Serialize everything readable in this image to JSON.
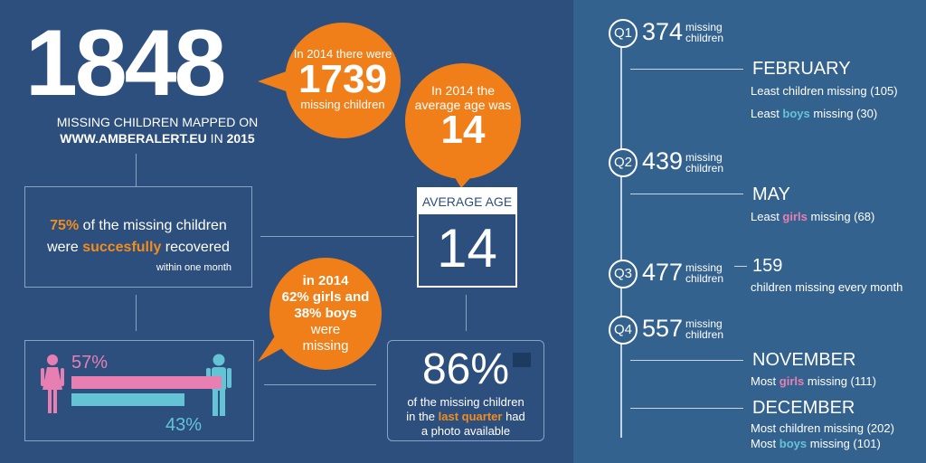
{
  "headline": {
    "number": "1848",
    "line1": "MISSING CHILDREN MAPPED ON",
    "line2_site": "WWW.AMBERALERT.EU",
    "line2_in": " IN ",
    "line2_year": "2015"
  },
  "bubble_2014_count": {
    "prefix": "In 2014 there were",
    "value": "1739",
    "suffix": "missing children"
  },
  "bubble_2014_age": {
    "line1": "In 2014 the",
    "line2": "average age was",
    "value": "14"
  },
  "recovered": {
    "pct": "75%",
    "text1": " of the missing children",
    "text2a": "were ",
    "text2b": "succesfully",
    "text2c": " recovered",
    "text3": "within one month"
  },
  "average_age_card": {
    "title": "AVERAGE AGE",
    "value": "14"
  },
  "bubble_gender_2014": {
    "l1": "in 2014",
    "l2": "62% girls and",
    "l3": "38% boys",
    "l4": "were",
    "l5": "missing"
  },
  "gender_split": {
    "girls_label": "57%",
    "boys_label": "43%",
    "girls_value": 57,
    "boys_value": 43,
    "girls_color": "#e87fb3",
    "boys_color": "#64c4d6"
  },
  "photo_stat": {
    "pct": "86%",
    "l1": "of the missing children",
    "l2a": "in the ",
    "l2b": "last quarter",
    "l2c": " had",
    "l3": "a photo available"
  },
  "quarters": [
    {
      "q": "Q1",
      "value": "374",
      "unit1": "missing",
      "unit2": "children"
    },
    {
      "q": "Q2",
      "value": "439",
      "unit1": "missing",
      "unit2": "children"
    },
    {
      "q": "Q3",
      "value": "477",
      "unit1": "missing",
      "unit2": "children"
    },
    {
      "q": "Q4",
      "value": "557",
      "unit1": "missing",
      "unit2": "children"
    }
  ],
  "months": {
    "february": {
      "title": "FEBRUARY",
      "note1": "Least children missing (105)",
      "note2a": "Least ",
      "note2b": "boys",
      "note2c": " missing (30)"
    },
    "may": {
      "title": "MAY",
      "note1a": "Least ",
      "note1b": "girls",
      "note1c": " missing (68)"
    },
    "monthly": {
      "value": "159",
      "note": "children missing every month"
    },
    "november": {
      "title": "NOVEMBER",
      "note1a": "Most ",
      "note1b": "girls",
      "note1c": " missing (111)"
    },
    "december": {
      "title": "DECEMBER",
      "note1": "Most children missing (202)",
      "note2a": "Most ",
      "note2b": "boys",
      "note2c": " missing (101)"
    }
  },
  "chart_data": {
    "type": "bar",
    "categories": [
      "girls",
      "boys"
    ],
    "values": [
      57,
      43
    ],
    "xlabel": "",
    "ylabel": ""
  }
}
